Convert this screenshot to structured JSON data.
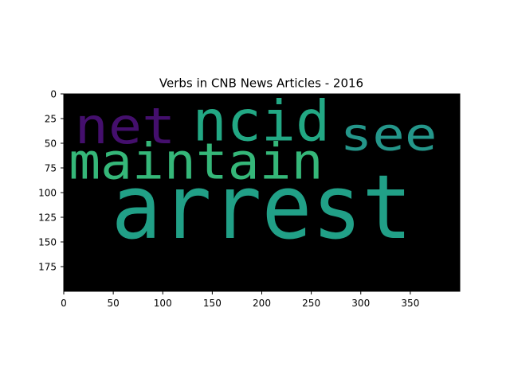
{
  "chart_data": {
    "type": "wordcloud",
    "title": "Verbs in CNB News Articles - 2016",
    "xlabel": "",
    "ylabel": "",
    "xlim": [
      0,
      400
    ],
    "ylim": [
      200,
      0
    ],
    "xticks": [
      0,
      50,
      100,
      150,
      200,
      250,
      300,
      350
    ],
    "yticks": [
      0,
      25,
      50,
      75,
      100,
      125,
      150,
      175
    ],
    "background": "#000000",
    "words": [
      {
        "text": "arrest",
        "color": "#21a087",
        "x_start": 48,
        "x_end": 352,
        "baseline_y": 146,
        "size_units": 90
      },
      {
        "text": "maintain",
        "color": "#35b779",
        "x_start": 5,
        "x_end": 262,
        "baseline_y": 86,
        "size_units": 50
      },
      {
        "text": "ncid",
        "color": "#22a884",
        "x_start": 130,
        "x_end": 269,
        "baseline_y": 47,
        "size_units": 57
      },
      {
        "text": "net",
        "color": "#440f6d",
        "x_start": 11,
        "x_end": 113,
        "baseline_y": 50,
        "size_units": 50
      },
      {
        "text": "see",
        "color": "#24968a",
        "x_start": 279,
        "x_end": 377,
        "baseline_y": 57,
        "size_units": 46
      }
    ]
  }
}
